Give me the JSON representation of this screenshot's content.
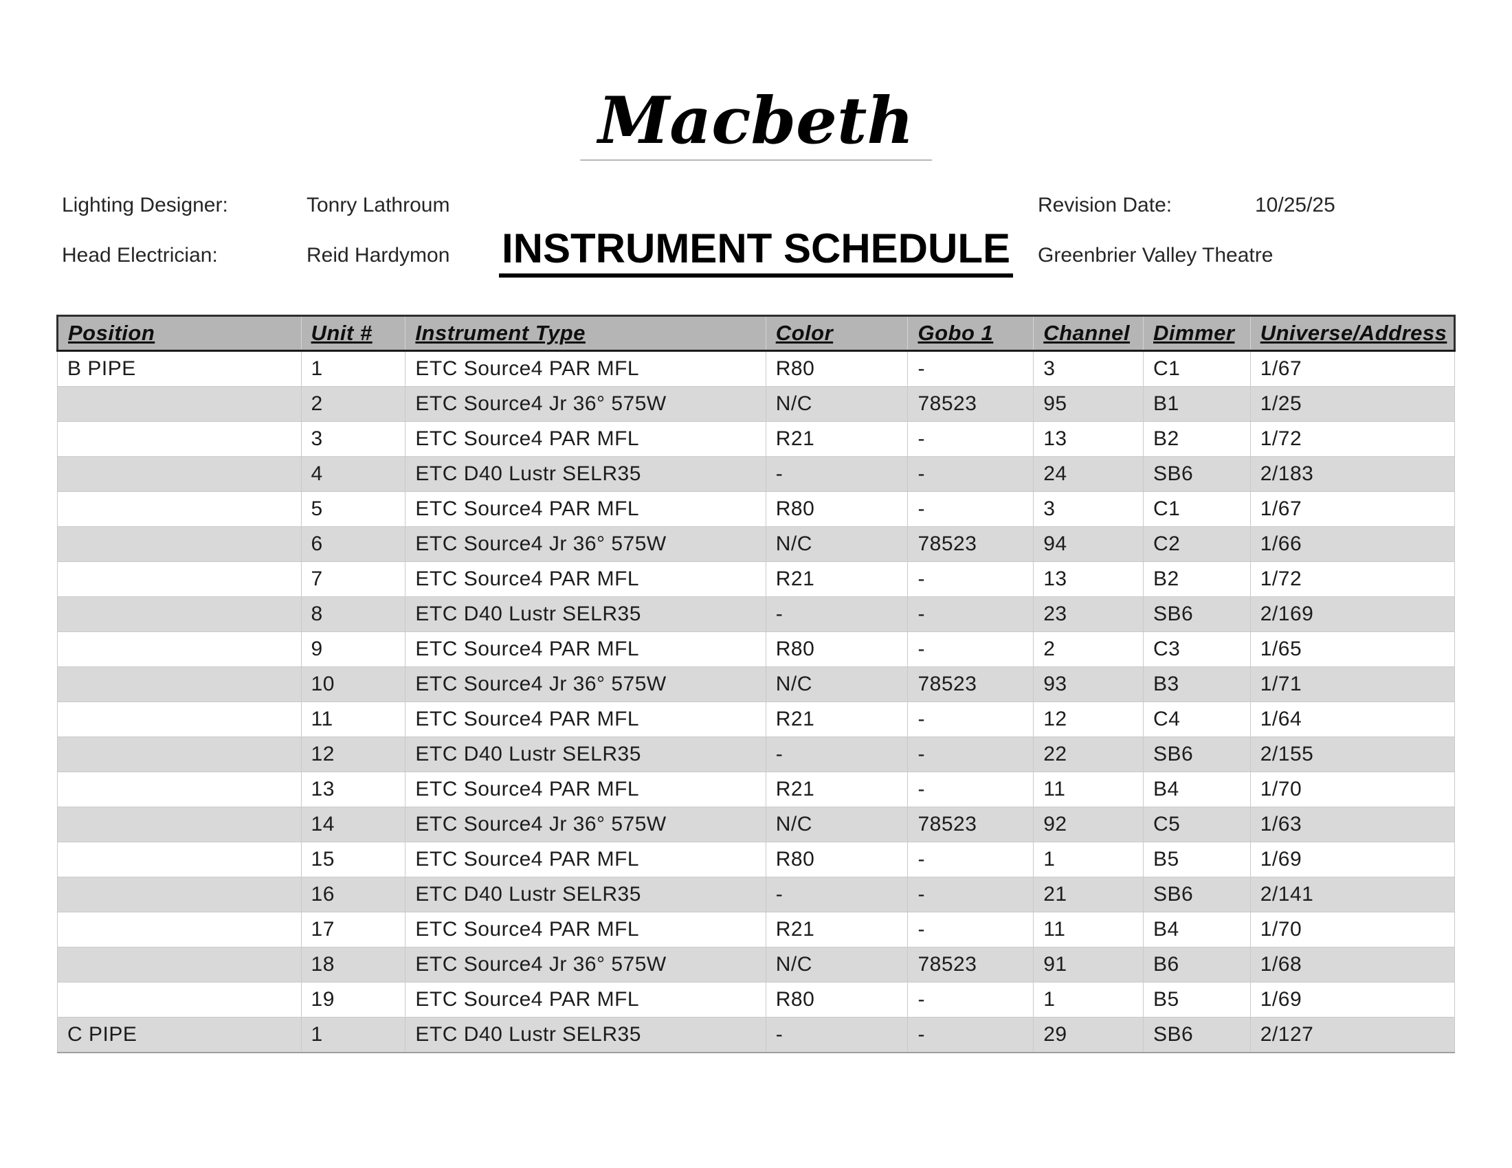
{
  "document": {
    "show_title": "Macbeth",
    "schedule_title": "INSTRUMENT SCHEDULE",
    "meta": {
      "lighting_designer_label": "Lighting Designer:",
      "lighting_designer": "Tonry Lathroum",
      "head_electrician_label": "Head Electrician:",
      "head_electrician": "Reid Hardymon",
      "revision_date_label": "Revision Date:",
      "revision_date": "10/25/25",
      "venue": "Greenbrier Valley Theatre"
    }
  },
  "table": {
    "columns": [
      "Position",
      "Unit #",
      "Instrument Type",
      "Color",
      "Gobo 1",
      "Channel",
      "Dimmer",
      "Universe/Address"
    ],
    "column_widths_pct": [
      17.44,
      7.47,
      25.79,
      10.17,
      8.99,
      7.86,
      7.66,
      14.62
    ],
    "rows": [
      [
        "B PIPE",
        "1",
        "ETC Source4 PAR MFL",
        "R80",
        "-",
        "3",
        "C1",
        "1/67"
      ],
      [
        "",
        "2",
        "ETC Source4 Jr 36° 575W",
        "N/C",
        "78523",
        "95",
        "B1",
        "1/25"
      ],
      [
        "",
        "3",
        "ETC Source4 PAR MFL",
        "R21",
        "-",
        "13",
        "B2",
        "1/72"
      ],
      [
        "",
        "4",
        "ETC D40 Lustr SELR35",
        "-",
        "-",
        "24",
        "SB6",
        "2/183"
      ],
      [
        "",
        "5",
        "ETC Source4 PAR MFL",
        "R80",
        "-",
        "3",
        "C1",
        "1/67"
      ],
      [
        "",
        "6",
        "ETC Source4 Jr 36° 575W",
        "N/C",
        "78523",
        "94",
        "C2",
        "1/66"
      ],
      [
        "",
        "7",
        "ETC Source4 PAR MFL",
        "R21",
        "-",
        "13",
        "B2",
        "1/72"
      ],
      [
        "",
        "8",
        "ETC D40 Lustr SELR35",
        "-",
        "-",
        "23",
        "SB6",
        "2/169"
      ],
      [
        "",
        "9",
        "ETC Source4 PAR MFL",
        "R80",
        "-",
        "2",
        "C3",
        "1/65"
      ],
      [
        "",
        "10",
        "ETC Source4 Jr 36° 575W",
        "N/C",
        "78523",
        "93",
        "B3",
        "1/71"
      ],
      [
        "",
        "11",
        "ETC Source4 PAR MFL",
        "R21",
        "-",
        "12",
        "C4",
        "1/64"
      ],
      [
        "",
        "12",
        "ETC D40 Lustr SELR35",
        "-",
        "-",
        "22",
        "SB6",
        "2/155"
      ],
      [
        "",
        "13",
        "ETC Source4 PAR MFL",
        "R21",
        "-",
        "11",
        "B4",
        "1/70"
      ],
      [
        "",
        "14",
        "ETC Source4 Jr 36° 575W",
        "N/C",
        "78523",
        "92",
        "C5",
        "1/63"
      ],
      [
        "",
        "15",
        "ETC Source4 PAR MFL",
        "R80",
        "-",
        "1",
        "B5",
        "1/69"
      ],
      [
        "",
        "16",
        "ETC D40 Lustr SELR35",
        "-",
        "-",
        "21",
        "SB6",
        "2/141"
      ],
      [
        "",
        "17",
        "ETC Source4 PAR MFL",
        "R21",
        "-",
        "11",
        "B4",
        "1/70"
      ],
      [
        "",
        "18",
        "ETC Source4 Jr 36° 575W",
        "N/C",
        "78523",
        "91",
        "B6",
        "1/68"
      ],
      [
        "",
        "19",
        "ETC Source4 PAR MFL",
        "R80",
        "-",
        "1",
        "B5",
        "1/69"
      ],
      [
        "C PIPE",
        "1",
        "ETC D40 Lustr SELR35",
        "-",
        "-",
        "29",
        "SB6",
        "2/127"
      ]
    ]
  },
  "colors": {
    "header_bg": "#b5b5b5",
    "row_alt_bg": "#d9d9d9",
    "row_bg": "#ffffff",
    "header_border": "#1a1a1a",
    "cell_border": "#c9c9c9",
    "text": "#1c1c1c"
  }
}
